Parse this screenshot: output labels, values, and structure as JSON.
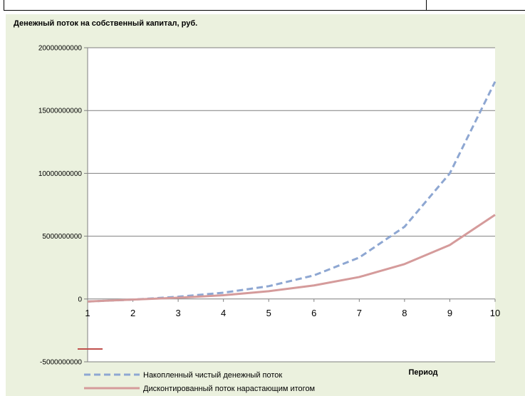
{
  "chart_data": {
    "type": "line",
    "title": "Денежный поток на собственный капитал, руб.",
    "xlabel": "Период",
    "ylabel": "",
    "x": [
      1,
      2,
      3,
      4,
      5,
      6,
      7,
      8,
      9,
      10
    ],
    "ylim": [
      -5000000000,
      20000000000
    ],
    "yticks": [
      "20000000000",
      "15000000000",
      "10000000000",
      "5000000000",
      "0",
      "-5000000000"
    ],
    "xticks": [
      "1",
      "2",
      "3",
      "4",
      "5",
      "6",
      "7",
      "8",
      "9",
      "10"
    ],
    "grid": true,
    "legend": "bottom-left",
    "series": [
      {
        "name": "Накопленный чистый денежный поток",
        "color": "#8ea7d2",
        "style": "dashed",
        "values": [
          -200000000,
          -50000000,
          180000000,
          500000000,
          1020000000,
          1880000000,
          3300000000,
          5750000000,
          10000000000,
          17300000000
        ]
      },
      {
        "name": "Дисконтированный поток нарастающим итогом",
        "color": "#d59b9b",
        "style": "solid",
        "values": [
          -200000000,
          -50000000,
          100000000,
          300000000,
          620000000,
          1080000000,
          1750000000,
          2780000000,
          4300000000,
          6700000000
        ]
      }
    ]
  },
  "colors": {
    "plot_background": "#ffffff",
    "chart_background": "#ebf1de",
    "gridline": "#7f7f7f",
    "stray_mark": "#c0504d"
  }
}
